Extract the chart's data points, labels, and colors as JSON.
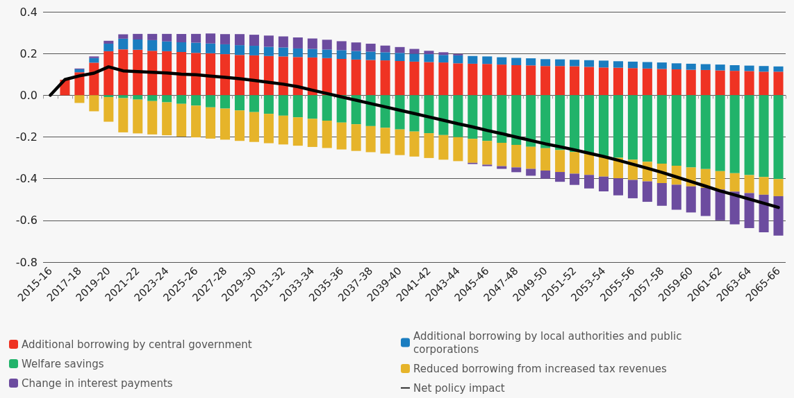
{
  "chart_data": {
    "type": "bar",
    "stacked": true,
    "categories": [
      "2015-16",
      null,
      "2017-18",
      null,
      "2019-20",
      null,
      "2021-22",
      null,
      "2023-24",
      null,
      "2025-26",
      null,
      "2027-28",
      null,
      "2029-30",
      null,
      "2031-32",
      null,
      "2033-34",
      null,
      "2035-36",
      null,
      "2037-38",
      null,
      "2039-40",
      null,
      "2041-42",
      null,
      "2043-44",
      null,
      "2045-46",
      null,
      "2047-48",
      null,
      "2049-50",
      null,
      "2051-52",
      null,
      "2053-54",
      null,
      "2055-56",
      null,
      "2057-58",
      null,
      "2059-60",
      null,
      "2061-62",
      null,
      "2063-64",
      null,
      "2065-66"
    ],
    "series": [
      {
        "name": "Additional borrowing by central government",
        "color": "#ef3323",
        "values": [
          null,
          0.074,
          0.11,
          0.156,
          0.211,
          0.22,
          0.218,
          0.213,
          0.211,
          0.207,
          0.203,
          0.201,
          0.197,
          0.193,
          0.191,
          0.188,
          0.186,
          0.183,
          0.181,
          0.178,
          0.174,
          0.171,
          0.169,
          0.167,
          0.164,
          0.161,
          0.159,
          0.157,
          0.153,
          0.151,
          0.15,
          0.147,
          0.144,
          0.143,
          0.14,
          0.14,
          0.139,
          0.136,
          0.133,
          0.132,
          0.13,
          0.128,
          0.126,
          0.124,
          0.122,
          0.121,
          0.119,
          0.117,
          0.116,
          0.113,
          0.113
        ]
      },
      {
        "name": "Additional borrowing by local authorities and public corporations",
        "color": "#1a7dc0",
        "values": [
          null,
          null,
          0.014,
          0.022,
          0.036,
          0.051,
          0.049,
          0.051,
          0.047,
          0.047,
          0.049,
          0.047,
          0.047,
          0.047,
          0.046,
          0.044,
          0.043,
          0.041,
          0.041,
          0.041,
          0.042,
          0.041,
          0.04,
          0.039,
          0.039,
          0.038,
          0.038,
          0.036,
          0.038,
          0.037,
          0.036,
          0.035,
          0.035,
          0.034,
          0.033,
          0.032,
          0.031,
          0.032,
          0.033,
          0.031,
          0.031,
          0.031,
          0.031,
          0.029,
          0.029,
          0.028,
          0.028,
          0.027,
          0.026,
          0.027,
          0.025
        ]
      },
      {
        "name": "Welfare savings",
        "color": "#21b36a",
        "values": [
          null,
          null,
          null,
          null,
          -0.009,
          -0.014,
          -0.021,
          -0.028,
          -0.034,
          -0.041,
          -0.05,
          -0.058,
          -0.064,
          -0.073,
          -0.081,
          -0.089,
          -0.098,
          -0.106,
          -0.113,
          -0.122,
          -0.131,
          -0.139,
          -0.148,
          -0.156,
          -0.164,
          -0.174,
          -0.182,
          -0.191,
          -0.201,
          -0.209,
          -0.219,
          -0.228,
          -0.238,
          -0.247,
          -0.254,
          -0.263,
          -0.272,
          -0.282,
          -0.291,
          -0.3,
          -0.309,
          -0.319,
          -0.328,
          -0.338,
          -0.346,
          -0.354,
          -0.364,
          -0.374,
          -0.383,
          -0.392,
          -0.402
        ]
      },
      {
        "name": "Reduced borrowing from increased tax revenues",
        "color": "#e6b42a",
        "values": [
          null,
          null,
          -0.037,
          -0.077,
          -0.118,
          -0.164,
          -0.162,
          -0.16,
          -0.158,
          -0.157,
          -0.152,
          -0.15,
          -0.149,
          -0.146,
          -0.143,
          -0.141,
          -0.138,
          -0.136,
          -0.135,
          -0.131,
          -0.129,
          -0.128,
          -0.125,
          -0.124,
          -0.123,
          -0.12,
          -0.119,
          -0.118,
          -0.115,
          -0.115,
          -0.114,
          -0.112,
          -0.108,
          -0.106,
          -0.107,
          -0.105,
          -0.104,
          -0.1,
          -0.099,
          -0.098,
          -0.097,
          -0.094,
          -0.093,
          -0.091,
          -0.091,
          -0.09,
          -0.088,
          -0.088,
          -0.086,
          -0.085,
          -0.082
        ]
      },
      {
        "name": "Change in interest payments",
        "color": "#6c4c9f",
        "values": [
          null,
          null,
          0.004,
          0.008,
          0.014,
          0.021,
          0.027,
          0.03,
          0.036,
          0.04,
          0.042,
          0.048,
          0.049,
          0.053,
          0.053,
          0.054,
          0.053,
          0.053,
          0.05,
          0.047,
          0.043,
          0.041,
          0.038,
          0.032,
          0.028,
          0.023,
          0.016,
          0.013,
          0.007,
          -0.006,
          -0.007,
          -0.013,
          -0.023,
          -0.033,
          -0.039,
          -0.047,
          -0.054,
          -0.065,
          -0.071,
          -0.082,
          -0.088,
          -0.098,
          -0.109,
          -0.12,
          -0.125,
          -0.135,
          -0.148,
          -0.157,
          -0.168,
          -0.18,
          -0.189
        ]
      },
      {
        "name": "Net policy impact",
        "type": "line",
        "color": "#000000",
        "values": [
          0,
          0.075,
          0.093,
          0.106,
          0.136,
          0.117,
          0.113,
          0.11,
          0.107,
          0.101,
          0.098,
          0.092,
          0.086,
          0.079,
          0.071,
          0.062,
          0.053,
          0.041,
          0.024,
          0.008,
          -0.008,
          -0.024,
          -0.04,
          -0.056,
          -0.072,
          -0.088,
          -0.104,
          -0.12,
          -0.137,
          -0.152,
          -0.169,
          -0.184,
          -0.201,
          -0.217,
          -0.233,
          -0.247,
          -0.262,
          -0.278,
          -0.294,
          -0.312,
          -0.331,
          -0.35,
          -0.37,
          -0.392,
          -0.414,
          -0.436,
          -0.459,
          -0.478,
          -0.498,
          -0.518,
          -0.538
        ]
      }
    ],
    "ylim": [
      -0.8,
      0.4
    ],
    "yticks": [
      -0.8,
      -0.6,
      -0.4,
      -0.2,
      {
        "value": 0,
        "label": "0.0"
      },
      0.2,
      0.4
    ],
    "grid": "y",
    "legend": "bottom",
    "marker": "none",
    "line_style": "solid"
  }
}
